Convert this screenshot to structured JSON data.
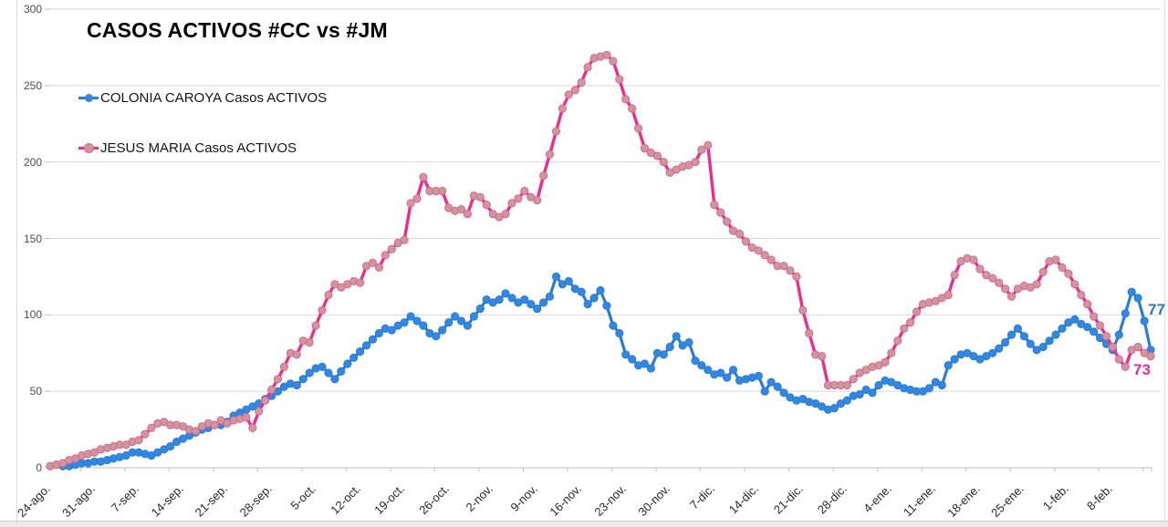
{
  "title": "CASOS ACTIVOS #CC vs #JM",
  "colors": {
    "cc_line": "#2c7cd6",
    "cc_marker": "#3287e0",
    "jm_line": "#ee2b8e",
    "jm_marker": "#c89b94",
    "jm_marker_edge": "#e85ba3",
    "grid": "#d9d9d9",
    "axis": "#bfbfbf",
    "cc_label": "#2e75c8",
    "jm_label": "#ee2b8e"
  },
  "chart_data": {
    "type": "line",
    "title": "CASOS ACTIVOS #CC vs #JM",
    "xlabel": "",
    "ylabel": "",
    "ylim": [
      0,
      300
    ],
    "y_ticks": [
      0,
      50,
      100,
      150,
      200,
      250,
      300
    ],
    "grid": "horizontal",
    "legend_position": "top-left-inside",
    "x_unit": "days",
    "x_tick_interval_days": 7,
    "x_tick_labels": [
      "24-ago.",
      "31-ago.",
      "7-sep.",
      "14-sep.",
      "21-sep.",
      "28-sep.",
      "5-oct.",
      "12-oct.",
      "19-oct.",
      "26-oct.",
      "2-nov.",
      "9-nov.",
      "16-nov.",
      "23-nov.",
      "30-nov.",
      "7-dic.",
      "14-dic.",
      "21-dic.",
      "28-dic.",
      "4-ene.",
      "11-ene.",
      "18-ene.",
      "25-ene.",
      "1-feb.",
      "8-feb."
    ],
    "series": [
      {
        "name": "COLONIA CAROYA Casos ACTIVOS",
        "end_label": "77",
        "values": [
          1,
          2,
          1,
          1,
          2,
          3,
          3,
          4,
          4,
          5,
          6,
          7,
          8,
          10,
          10,
          9,
          8,
          10,
          12,
          14,
          17,
          19,
          21,
          23,
          25,
          26,
          28,
          28,
          30,
          34,
          36,
          38,
          40,
          42,
          45,
          47,
          50,
          53,
          55,
          54,
          58,
          62,
          65,
          66,
          62,
          58,
          63,
          68,
          72,
          76,
          80,
          84,
          88,
          91,
          90,
          93,
          95,
          99,
          96,
          93,
          88,
          86,
          90,
          95,
          99,
          96,
          93,
          99,
          104,
          110,
          108,
          110,
          114,
          111,
          108,
          110,
          107,
          104,
          108,
          112,
          125,
          120,
          122,
          117,
          115,
          107,
          111,
          116,
          106,
          93,
          88,
          74,
          71,
          67,
          68,
          65,
          75,
          74,
          79,
          86,
          80,
          82,
          70,
          67,
          64,
          61,
          62,
          59,
          64,
          57,
          58,
          59,
          60,
          50,
          56,
          53,
          49,
          46,
          44,
          45,
          43,
          42,
          40,
          38,
          39,
          42,
          44,
          47,
          48,
          51,
          49,
          54,
          57,
          56,
          54,
          52,
          51,
          50,
          50,
          52,
          56,
          54,
          67,
          71,
          74,
          75,
          73,
          71,
          73,
          75,
          78,
          82,
          87,
          91,
          86,
          81,
          77,
          79,
          83,
          87,
          91,
          95,
          97,
          94,
          92,
          89,
          85,
          81,
          77,
          87,
          101,
          115,
          111,
          96,
          77
        ]
      },
      {
        "name": "JESUS MARIA Casos ACTIVOS",
        "end_label": "73",
        "values": [
          1,
          2,
          3,
          5,
          6,
          8,
          9,
          10,
          12,
          13,
          14,
          15,
          15,
          17,
          18,
          22,
          26,
          29,
          30,
          28,
          28,
          27,
          25,
          24,
          27,
          29,
          28,
          31,
          29,
          31,
          32,
          33,
          26,
          37,
          44,
          51,
          58,
          66,
          75,
          74,
          83,
          82,
          93,
          103,
          113,
          120,
          118,
          120,
          122,
          121,
          132,
          134,
          131,
          139,
          143,
          147,
          149,
          173,
          176,
          190,
          181,
          181,
          181,
          170,
          168,
          169,
          166,
          178,
          177,
          172,
          166,
          164,
          166,
          173,
          176,
          181,
          177,
          175,
          191,
          205,
          220,
          235,
          244,
          247,
          252,
          262,
          268,
          269,
          270,
          266,
          254,
          241,
          235,
          222,
          209,
          206,
          204,
          200,
          193,
          195,
          197,
          198,
          200,
          208,
          211,
          172,
          167,
          161,
          155,
          153,
          148,
          144,
          142,
          139,
          136,
          132,
          132,
          129,
          125,
          103,
          88,
          74,
          73,
          54,
          54,
          54,
          54,
          58,
          62,
          64,
          66,
          67,
          69,
          75,
          83,
          91,
          95,
          102,
          107,
          108,
          109,
          111,
          113,
          126,
          135,
          137,
          136,
          130,
          126,
          124,
          121,
          117,
          112,
          117,
          119,
          118,
          120,
          128,
          135,
          136,
          131,
          127,
          120,
          113,
          107,
          99,
          93,
          86,
          79,
          71,
          66,
          77,
          79,
          75,
          73
        ]
      }
    ]
  }
}
